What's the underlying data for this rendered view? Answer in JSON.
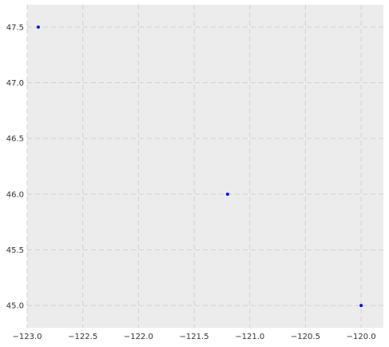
{
  "chart_data": {
    "type": "scatter",
    "title": "",
    "xlabel": "",
    "ylabel": "",
    "xlim": [
      -123.0,
      -119.8
    ],
    "ylim": [
      44.8,
      47.7
    ],
    "xticks": [
      -123.0,
      -122.5,
      -122.0,
      -121.5,
      -121.0,
      -120.5,
      -120.0
    ],
    "xtick_labels": [
      "−123.0",
      "−122.5",
      "−122.0",
      "−121.5",
      "−121.0",
      "−120.5",
      "−120.0"
    ],
    "yticks": [
      45.0,
      45.5,
      46.0,
      46.5,
      47.0,
      47.5
    ],
    "ytick_labels": [
      "45.0",
      "45.5",
      "46.0",
      "46.5",
      "47.0",
      "47.5"
    ],
    "grid": true,
    "series": [
      {
        "points": [
          {
            "x": -122.9,
            "y": 47.5
          },
          {
            "x": -121.2,
            "y": 46.0
          },
          {
            "x": -120.0,
            "y": 45.0
          }
        ]
      }
    ],
    "colors": {
      "background": "#ececec",
      "grid": "#cfcfcf",
      "point": "#0000ff",
      "text": "#333333"
    }
  }
}
